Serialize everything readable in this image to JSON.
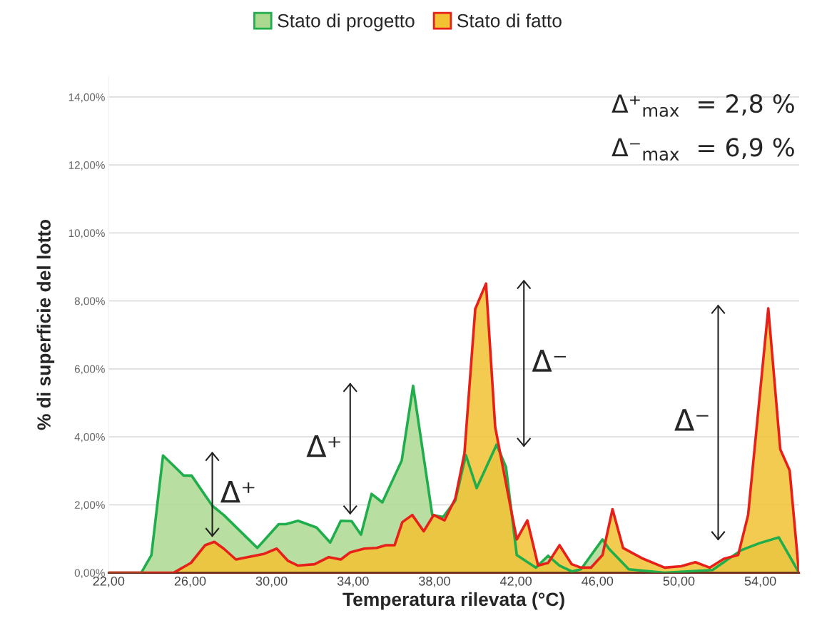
{
  "chart_data": {
    "type": "area",
    "xlabel": "Temperatura rilevata (°C)",
    "ylabel": "% di superficie del lotto",
    "xlim": [
      22,
      55.9
    ],
    "ylim": [
      0,
      14.6
    ],
    "xticks": [
      {
        "value": 22,
        "label": "22,00"
      },
      {
        "value": 26,
        "label": "26,00"
      },
      {
        "value": 30,
        "label": "30,00"
      },
      {
        "value": 34,
        "label": "34,00"
      },
      {
        "value": 38,
        "label": "38,00"
      },
      {
        "value": 42,
        "label": "42,00"
      },
      {
        "value": 46,
        "label": "46,00"
      },
      {
        "value": 50,
        "label": "50,00"
      },
      {
        "value": 54,
        "label": "54,00"
      }
    ],
    "yticks": [
      {
        "value": 0,
        "label": "0,00%"
      },
      {
        "value": 2,
        "label": "2,00%"
      },
      {
        "value": 4,
        "label": "4,00%"
      },
      {
        "value": 6,
        "label": "6,00%"
      },
      {
        "value": 8,
        "label": "8,00%"
      },
      {
        "value": 10,
        "label": "10,00%"
      },
      {
        "value": 12,
        "label": "12,00%"
      },
      {
        "value": 14,
        "label": "14,00%"
      }
    ],
    "grid": "y",
    "legend": "top",
    "series": [
      {
        "name": "Stato di progetto",
        "color": "#1fae4b",
        "x": [
          22,
          23.6,
          24.1,
          24.67,
          25.68,
          26.07,
          27.09,
          27.65,
          29.3,
          30.35,
          30.7,
          31.3,
          32.21,
          32.88,
          33.4,
          33.93,
          34.39,
          34.91,
          35.44,
          36.39,
          36.95,
          37.89,
          38.42,
          39.02,
          39.54,
          40.07,
          41.05,
          41.51,
          42.04,
          42.98,
          43.58,
          44.14,
          44.74,
          45.19,
          46.25,
          46.56,
          47.54,
          49.3,
          51.65,
          53.05,
          53.96,
          54.91,
          55.86
        ],
        "values": [
          0,
          0,
          0.52,
          3.45,
          2.86,
          2.86,
          1.97,
          1.7,
          0.73,
          1.43,
          1.43,
          1.53,
          1.33,
          0.89,
          1.53,
          1.52,
          1.12,
          2.32,
          2.07,
          3.3,
          5.5,
          1.7,
          1.64,
          2.12,
          3.46,
          2.49,
          3.77,
          3.11,
          0.52,
          0.15,
          0.5,
          0.21,
          0.04,
          0.1,
          0.98,
          0.71,
          0.1,
          0,
          0.08,
          0.66,
          0.87,
          1.04,
          0.04
        ]
      },
      {
        "name": "Stato di fatto",
        "color": "#e8201a",
        "x": [
          22,
          23.68,
          25.19,
          26.04,
          26.74,
          27.19,
          27.65,
          28.25,
          29.65,
          30.25,
          30.81,
          31.3,
          32.11,
          32.81,
          33.4,
          33.86,
          34.56,
          35.16,
          35.61,
          36.04,
          36.42,
          36.91,
          37.47,
          37.96,
          38.49,
          39.02,
          39.47,
          40.0,
          40.53,
          40.98,
          42.04,
          42.56,
          43.09,
          43.58,
          44.14,
          44.74,
          45.19,
          45.68,
          46.25,
          46.74,
          47.26,
          48.25,
          49.3,
          50.11,
          50.81,
          51.51,
          52.21,
          52.91,
          53.4,
          54.39,
          54.98,
          55.44,
          55.89
        ],
        "values": [
          0,
          0,
          0,
          0.29,
          0.81,
          0.91,
          0.71,
          0.39,
          0.56,
          0.71,
          0.35,
          0.21,
          0.25,
          0.46,
          0.39,
          0.6,
          0.71,
          0.73,
          0.81,
          0.81,
          1.49,
          1.7,
          1.22,
          1.7,
          1.54,
          2.18,
          3.51,
          7.76,
          8.51,
          4.29,
          0.98,
          1.54,
          0.21,
          0.29,
          0.81,
          0.25,
          0.15,
          0.15,
          0.52,
          1.87,
          0.73,
          0.41,
          0.15,
          0.19,
          0.31,
          0.15,
          0.41,
          0.52,
          1.7,
          7.78,
          3.63,
          3.01,
          0.04
        ]
      },
      {
        "type": "line",
        "name": "Δ⁺",
        "color": "#222222",
        "x": [
          27.09,
          27.09
        ],
        "values": [
          1.08,
          3.53
        ]
      },
      {
        "type": "line",
        "name": "Δ⁺",
        "color": "#222222",
        "x": [
          33.86,
          33.86
        ],
        "values": [
          1.74,
          5.56
        ]
      },
      {
        "type": "line",
        "name": "Δ⁻",
        "color": "#222222",
        "x": [
          42.39,
          42.39
        ],
        "values": [
          3.73,
          8.59
        ]
      },
      {
        "type": "line",
        "name": "Δ⁻",
        "color": "#222222",
        "x": [
          51.93,
          51.93
        ],
        "values": [
          0.98,
          7.86
        ]
      }
    ],
    "annotations": [
      "Δ⁺$_{max}$  = 2,8 %",
      "Δ⁻$_{max}$  = 6,9 %"
    ]
  }
}
